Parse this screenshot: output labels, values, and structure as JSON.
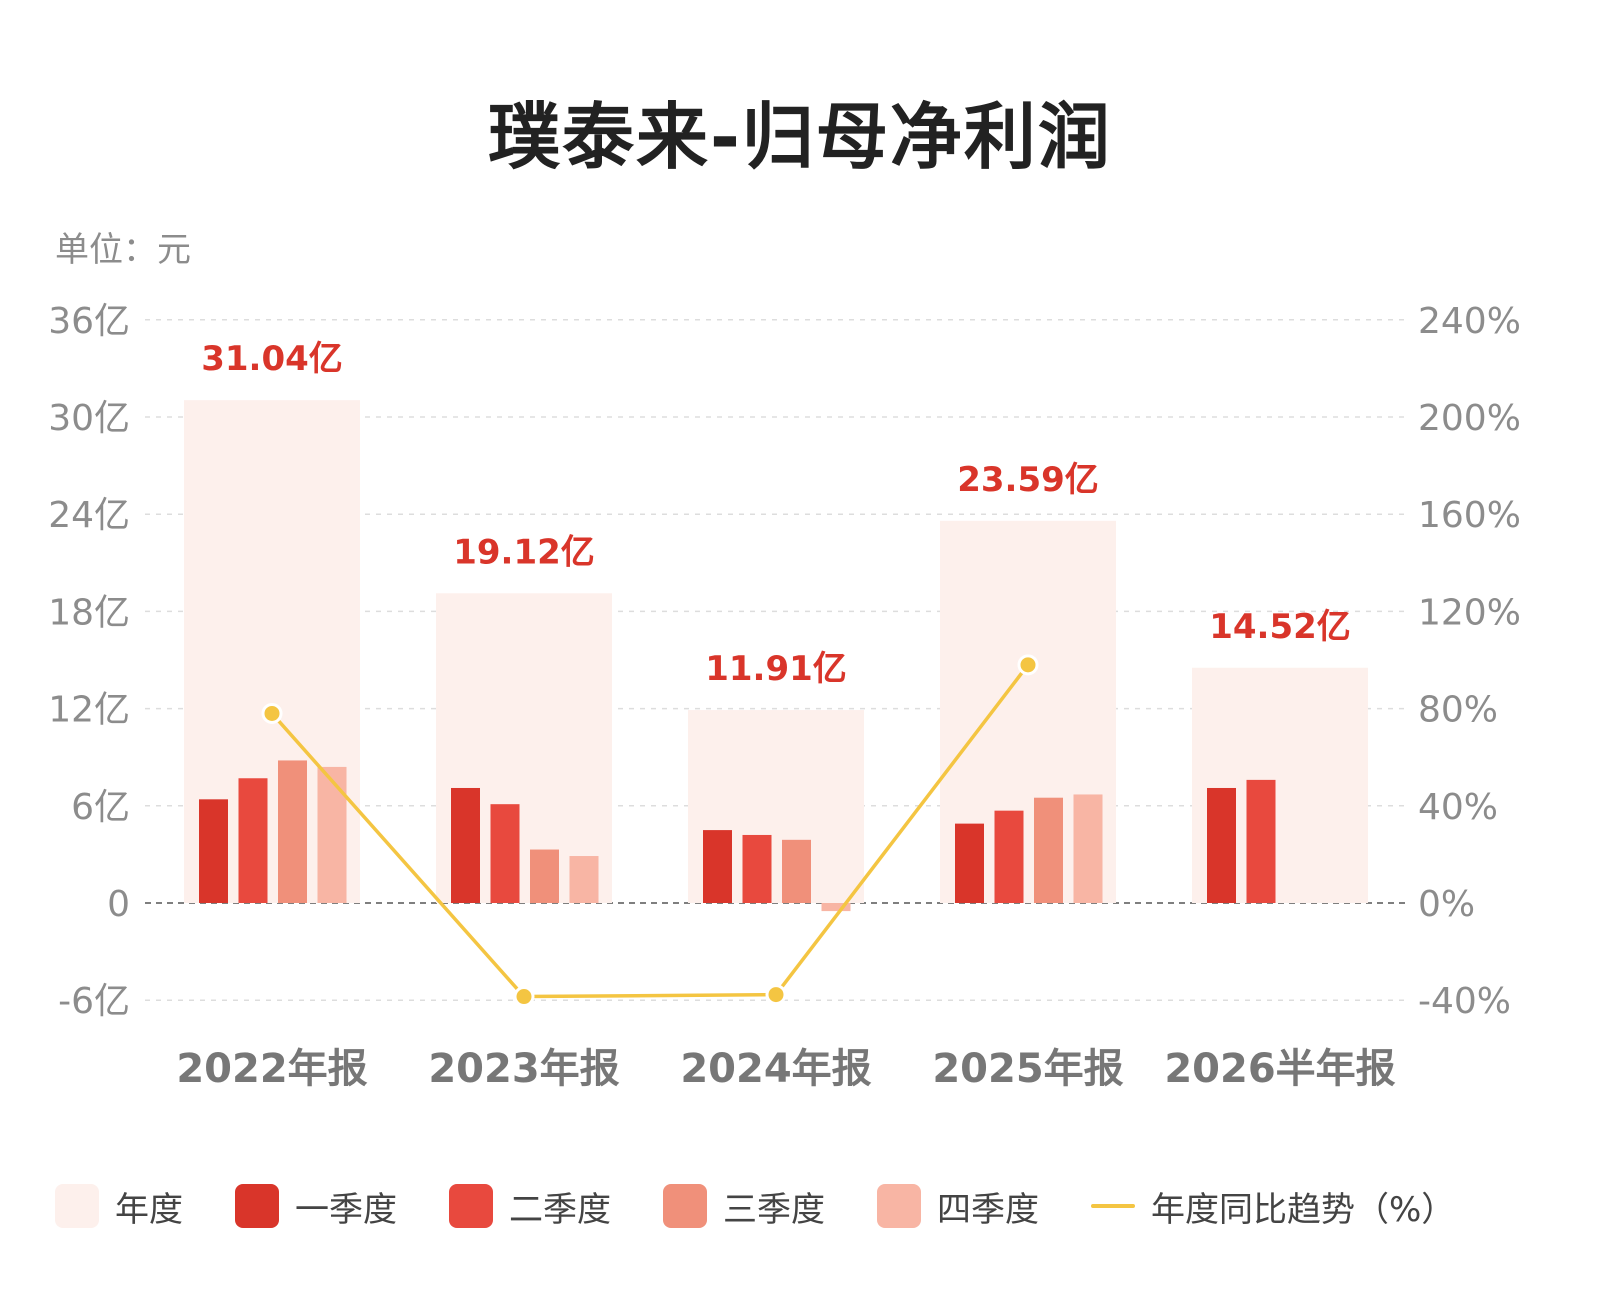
{
  "title": "璞泰来-归母净利润",
  "unit_label": "单位：元",
  "colors": {
    "annual": "#fdf0ec",
    "q1": "#d9352a",
    "q2": "#e8493e",
    "q3": "#f0907a",
    "q4": "#f8b5a4",
    "trend": "#f4c542",
    "value_label": "#d9352a",
    "axis_text": "#8c8c8c"
  },
  "legend": [
    {
      "key": "annual",
      "label": "年度",
      "kind": "box"
    },
    {
      "key": "q1",
      "label": "一季度",
      "kind": "box"
    },
    {
      "key": "q2",
      "label": "二季度",
      "kind": "box"
    },
    {
      "key": "q3",
      "label": "三季度",
      "kind": "box"
    },
    {
      "key": "q4",
      "label": "四季度",
      "kind": "box"
    },
    {
      "key": "trend",
      "label": "年度同比趋势（%）",
      "kind": "line"
    }
  ],
  "chart_data": {
    "type": "bar",
    "categories": [
      "2022年报",
      "2023年报",
      "2024年报",
      "2025年报",
      "2026半年报"
    ],
    "y_left": {
      "min": -6,
      "max": 36,
      "ticks": [
        -6,
        0,
        6,
        12,
        18,
        24,
        30,
        36
      ],
      "tick_labels": [
        "-6亿",
        "0",
        "6亿",
        "12亿",
        "18亿",
        "24亿",
        "30亿",
        "36亿"
      ]
    },
    "y_right": {
      "min": -40,
      "max": 240,
      "ticks": [
        -40,
        0,
        40,
        80,
        120,
        160,
        200,
        240
      ],
      "tick_labels": [
        "-40%",
        "0%",
        "40%",
        "80%",
        "120%",
        "160%",
        "200%",
        "240%"
      ]
    },
    "annual": {
      "values": [
        31.04,
        19.12,
        11.91,
        23.59,
        14.52
      ],
      "labels": [
        "31.04亿",
        "19.12亿",
        "11.91亿",
        "23.59亿",
        "14.52亿"
      ]
    },
    "quarters": [
      {
        "key": "q1",
        "values": [
          6.4,
          7.1,
          4.5,
          4.9,
          7.1
        ]
      },
      {
        "key": "q2",
        "values": [
          7.7,
          6.1,
          4.2,
          5.7,
          7.6
        ]
      },
      {
        "key": "q3",
        "values": [
          8.8,
          3.3,
          3.9,
          6.5,
          null
        ]
      },
      {
        "key": "q4",
        "values": [
          8.4,
          2.9,
          -0.5,
          6.7,
          null
        ]
      }
    ],
    "trend": {
      "values": [
        78,
        -38.5,
        -37.7,
        98,
        null
      ]
    },
    "grid": true,
    "legend_position": "bottom"
  }
}
